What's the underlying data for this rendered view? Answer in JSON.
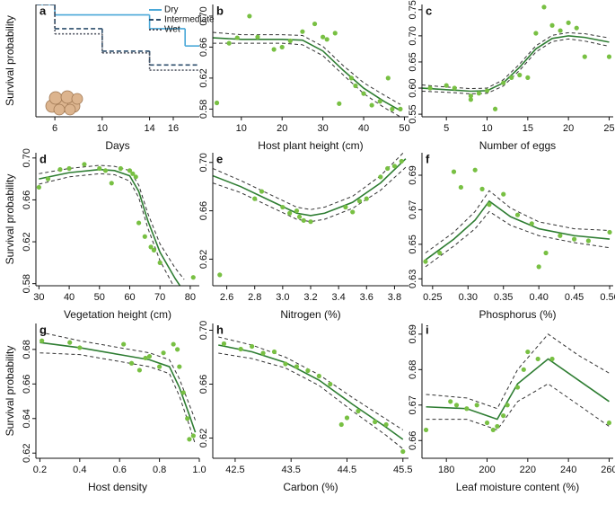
{
  "chart_data": [
    {
      "type": "step",
      "label": "a",
      "x_label": "Days",
      "y_label": "Survival probability",
      "xlim": [
        4.4,
        18.2
      ],
      "ylim": [
        0.35,
        1.0
      ],
      "xticks": [
        6,
        10,
        14,
        16
      ],
      "series": [
        {
          "name": "Dry",
          "color": "#4aa8d8",
          "dash": "none",
          "x": [
            4.4,
            6,
            14,
            17
          ],
          "values": [
            1.0,
            0.94,
            0.86,
            0.76
          ]
        },
        {
          "name": "Intermediate",
          "color": "#2d4e6c",
          "dash": "5,3",
          "x": [
            4.4,
            6,
            10,
            14
          ],
          "values": [
            1.0,
            0.86,
            0.73,
            0.65
          ]
        },
        {
          "name": "Wet",
          "color": "#555a66",
          "dash": "2,2",
          "x": [
            4.4,
            6,
            10,
            14
          ],
          "values": [
            1.0,
            0.83,
            0.72,
            0.62
          ]
        }
      ]
    },
    {
      "type": "scatter",
      "label": "b",
      "x_label": "Host plant height (cm)",
      "xlim": [
        3,
        51
      ],
      "ylim": [
        0.57,
        0.715
      ],
      "xticks": [
        10,
        20,
        30,
        40,
        50
      ],
      "yticks": [
        0.58,
        0.62,
        0.66,
        {
          "value": 0.7,
          "label": "0.70"
        }
      ],
      "x": [
        4,
        7,
        9,
        12,
        14,
        18,
        20,
        22,
        25,
        28,
        30,
        31,
        33,
        34,
        37,
        38,
        40,
        42,
        44,
        46,
        47,
        49
      ],
      "values": [
        0.588,
        0.665,
        0.672,
        0.7,
        0.673,
        0.657,
        0.66,
        0.668,
        0.68,
        0.69,
        0.673,
        0.67,
        0.678,
        0.587,
        0.62,
        0.61,
        0.6,
        0.585,
        0.59,
        0.62,
        0.58,
        0.58
      ],
      "curve": {
        "x": [
          3,
          10,
          20,
          25,
          30,
          35,
          40,
          45,
          49
        ],
        "values": [
          0.672,
          0.67,
          0.67,
          0.669,
          0.655,
          0.63,
          0.607,
          0.59,
          0.578
        ],
        "lower": [
          0.665,
          0.665,
          0.665,
          0.663,
          0.649,
          0.624,
          0.6,
          0.582,
          0.57
        ],
        "upper": [
          0.679,
          0.676,
          0.676,
          0.675,
          0.661,
          0.636,
          0.614,
          0.598,
          0.586
        ]
      }
    },
    {
      "type": "scatter",
      "label": "c",
      "x_label": "Number of eggs",
      "xlim": [
        2,
        25.5
      ],
      "ylim": [
        0.545,
        0.76
      ],
      "xticks": [
        5,
        10,
        15,
        20,
        25
      ],
      "yticks": [
        0.55,
        {
          "value": 0.6,
          "label": "0.60"
        },
        0.65,
        {
          "value": 0.7,
          "label": "0.70"
        },
        0.75
      ],
      "x": [
        3,
        5,
        6,
        8,
        8,
        9,
        10,
        11,
        12,
        13,
        14,
        15,
        16,
        17,
        18,
        19,
        20,
        21,
        22,
        25
      ],
      "values": [
        0.6,
        0.605,
        0.6,
        0.585,
        0.578,
        0.59,
        0.595,
        0.56,
        0.61,
        0.62,
        0.625,
        0.62,
        0.705,
        0.755,
        0.72,
        0.71,
        0.725,
        0.715,
        0.66,
        0.66
      ],
      "curve": {
        "x": [
          2,
          5,
          8,
          10,
          12,
          14,
          16,
          18,
          20,
          22,
          25
        ],
        "values": [
          0.6,
          0.597,
          0.594,
          0.595,
          0.61,
          0.64,
          0.675,
          0.695,
          0.7,
          0.697,
          0.688
        ],
        "lower": [
          0.594,
          0.592,
          0.589,
          0.59,
          0.604,
          0.634,
          0.669,
          0.689,
          0.694,
          0.69,
          0.68
        ],
        "upper": [
          0.606,
          0.602,
          0.599,
          0.6,
          0.616,
          0.646,
          0.681,
          0.701,
          0.706,
          0.704,
          0.696
        ]
      }
    },
    {
      "type": "scatter",
      "label": "d",
      "x_label": "Vegetation height (cm)",
      "y_label": "Survival probability",
      "xlim": [
        29,
        83
      ],
      "ylim": [
        0.578,
        0.705
      ],
      "xticks": [
        30,
        40,
        50,
        60,
        70,
        80
      ],
      "yticks": [
        0.58,
        0.62,
        0.66,
        {
          "value": 0.7,
          "label": "0.70"
        }
      ],
      "x": [
        30,
        33,
        37,
        40,
        45,
        50,
        52,
        54,
        57,
        60,
        61,
        62,
        63,
        65,
        67,
        68,
        70,
        81
      ],
      "values": [
        0.672,
        0.68,
        0.689,
        0.69,
        0.694,
        0.69,
        0.688,
        0.676,
        0.69,
        0.688,
        0.685,
        0.682,
        0.638,
        0.625,
        0.615,
        0.612,
        0.6,
        0.586
      ],
      "curve": {
        "x": [
          30,
          40,
          50,
          55,
          60,
          63,
          66,
          70,
          75,
          78
        ],
        "values": [
          0.68,
          0.686,
          0.689,
          0.688,
          0.683,
          0.668,
          0.64,
          0.61,
          0.585,
          0.572
        ],
        "lower": [
          0.675,
          0.682,
          0.685,
          0.684,
          0.678,
          0.662,
          0.633,
          0.602,
          0.575,
          0.56
        ],
        "upper": [
          0.685,
          0.69,
          0.693,
          0.692,
          0.688,
          0.674,
          0.647,
          0.618,
          0.595,
          0.584
        ]
      }
    },
    {
      "type": "scatter",
      "label": "e",
      "x_label": "Nitrogen (%)",
      "xlim": [
        2.5,
        3.9
      ],
      "ylim": [
        0.598,
        0.708
      ],
      "xticks": [
        2.6,
        2.8,
        {
          "value": 3,
          "label": "3.0"
        },
        3.2,
        3.4,
        3.6,
        3.8
      ],
      "yticks": [
        0.62,
        0.66,
        {
          "value": 0.7,
          "label": "0.70"
        }
      ],
      "x": [
        2.55,
        2.8,
        2.85,
        3.0,
        3.05,
        3.1,
        3.12,
        3.15,
        3.2,
        3.45,
        3.5,
        3.55,
        3.6,
        3.7,
        3.75,
        3.8,
        3.85
      ],
      "values": [
        0.607,
        0.67,
        0.676,
        0.663,
        0.658,
        0.66,
        0.655,
        0.652,
        0.651,
        0.663,
        0.659,
        0.668,
        0.67,
        0.688,
        0.695,
        0.697,
        0.701
      ],
      "curve": {
        "x": [
          2.5,
          2.7,
          2.9,
          3.1,
          3.2,
          3.3,
          3.5,
          3.7,
          3.88
        ],
        "values": [
          0.689,
          0.68,
          0.669,
          0.658,
          0.656,
          0.658,
          0.667,
          0.683,
          0.703
        ],
        "lower": [
          0.683,
          0.675,
          0.664,
          0.653,
          0.651,
          0.653,
          0.662,
          0.677,
          0.696
        ],
        "upper": [
          0.695,
          0.685,
          0.674,
          0.663,
          0.661,
          0.663,
          0.672,
          0.689,
          0.71
        ]
      }
    },
    {
      "type": "scatter",
      "label": "f",
      "x_label": "Phosphorus (%)",
      "xlim": [
        0.235,
        0.505
      ],
      "ylim": [
        0.626,
        0.703
      ],
      "xticks": [
        0.25,
        {
          "value": 0.3,
          "label": "0.30"
        },
        0.35,
        {
          "value": 0.4,
          "label": "0.40"
        },
        0.45,
        {
          "value": 0.5,
          "label": "0.50"
        }
      ],
      "yticks": [
        0.63,
        0.65,
        0.67,
        0.69
      ],
      "x": [
        0.24,
        0.26,
        0.28,
        0.29,
        0.31,
        0.32,
        0.33,
        0.35,
        0.37,
        0.39,
        0.4,
        0.41,
        0.43,
        0.45,
        0.47,
        0.5
      ],
      "values": [
        0.64,
        0.645,
        0.692,
        0.683,
        0.693,
        0.682,
        0.673,
        0.679,
        0.667,
        0.662,
        0.637,
        0.645,
        0.655,
        0.653,
        0.652,
        0.657
      ],
      "curve": {
        "x": [
          0.24,
          0.28,
          0.31,
          0.33,
          0.36,
          0.4,
          0.45,
          0.5
        ],
        "values": [
          0.641,
          0.653,
          0.664,
          0.675,
          0.666,
          0.659,
          0.655,
          0.653
        ],
        "lower": [
          0.637,
          0.649,
          0.659,
          0.669,
          0.661,
          0.655,
          0.651,
          0.648
        ],
        "upper": [
          0.645,
          0.657,
          0.669,
          0.681,
          0.671,
          0.663,
          0.659,
          0.658
        ]
      }
    },
    {
      "type": "scatter",
      "label": "g",
      "x_label": "Host density",
      "y_label": "Survival probability",
      "xlim": [
        0.18,
        1.0
      ],
      "ylim": [
        0.617,
        0.695
      ],
      "xticks": [
        0.2,
        0.4,
        0.6,
        0.8,
        {
          "value": 1,
          "label": "1.0"
        }
      ],
      "yticks": [
        0.62,
        0.64,
        0.66,
        0.68
      ],
      "x": [
        0.21,
        0.35,
        0.4,
        0.62,
        0.66,
        0.7,
        0.73,
        0.75,
        0.8,
        0.82,
        0.87,
        0.89,
        0.9,
        0.92,
        0.94,
        0.95,
        0.97
      ],
      "values": [
        0.685,
        0.684,
        0.681,
        0.683,
        0.672,
        0.668,
        0.675,
        0.676,
        0.67,
        0.678,
        0.683,
        0.68,
        0.67,
        0.655,
        0.64,
        0.628,
        0.63
      ],
      "curve": {
        "x": [
          0.2,
          0.4,
          0.6,
          0.75,
          0.85,
          0.9,
          0.95,
          0.98
        ],
        "values": [
          0.684,
          0.681,
          0.677,
          0.674,
          0.67,
          0.658,
          0.642,
          0.632
        ],
        "lower": [
          0.678,
          0.677,
          0.673,
          0.67,
          0.666,
          0.653,
          0.636,
          0.625
        ],
        "upper": [
          0.69,
          0.685,
          0.681,
          0.678,
          0.674,
          0.663,
          0.648,
          0.639
        ]
      }
    },
    {
      "type": "scatter",
      "label": "h",
      "x_label": "Carbon (%)",
      "xlim": [
        42.1,
        45.6
      ],
      "ylim": [
        0.605,
        0.705
      ],
      "xticks": [
        42.5,
        43.5,
        44.5,
        45.5
      ],
      "yticks": [
        0.62,
        0.66,
        {
          "value": 0.7,
          "label": "0.70"
        }
      ],
      "x": [
        42.3,
        42.6,
        42.8,
        43,
        43.2,
        43.4,
        43.6,
        43.8,
        44,
        44.2,
        44.4,
        44.5,
        44.7,
        45,
        45.2,
        45.5
      ],
      "values": [
        0.69,
        0.686,
        0.688,
        0.683,
        0.684,
        0.675,
        0.673,
        0.67,
        0.666,
        0.66,
        0.63,
        0.635,
        0.64,
        0.632,
        0.63,
        0.61
      ],
      "curve": {
        "x": [
          42.2,
          42.8,
          43.4,
          44,
          44.6,
          45.2,
          45.5
        ],
        "values": [
          0.689,
          0.684,
          0.676,
          0.663,
          0.645,
          0.628,
          0.619
        ],
        "lower": [
          0.683,
          0.679,
          0.672,
          0.659,
          0.64,
          0.622,
          0.612
        ],
        "upper": [
          0.695,
          0.689,
          0.68,
          0.667,
          0.65,
          0.634,
          0.626
        ]
      }
    },
    {
      "type": "scatter",
      "label": "i",
      "x_label": "Leaf moisture content (%)",
      "xlim": [
        168,
        262
      ],
      "ylim": [
        0.655,
        0.693
      ],
      "xticks": [
        180,
        200,
        220,
        240,
        260
      ],
      "yticks": [
        0.66,
        0.67,
        0.68,
        0.69
      ],
      "x": [
        170,
        182,
        185,
        190,
        195,
        200,
        203,
        205,
        208,
        210,
        215,
        218,
        220,
        225,
        232,
        260
      ],
      "values": [
        0.663,
        0.671,
        0.67,
        0.669,
        0.67,
        0.665,
        0.663,
        0.664,
        0.667,
        0.67,
        0.675,
        0.68,
        0.685,
        0.683,
        0.683,
        0.665
      ],
      "curve": {
        "x": [
          170,
          190,
          200,
          205,
          215,
          230,
          245,
          260
        ],
        "values": [
          0.6695,
          0.669,
          0.667,
          0.666,
          0.676,
          0.683,
          0.677,
          0.671
        ],
        "lower": [
          0.666,
          0.666,
          0.664,
          0.663,
          0.671,
          0.676,
          0.67,
          0.664
        ],
        "upper": [
          0.673,
          0.672,
          0.67,
          0.669,
          0.68,
          0.69,
          0.684,
          0.679
        ]
      }
    }
  ]
}
